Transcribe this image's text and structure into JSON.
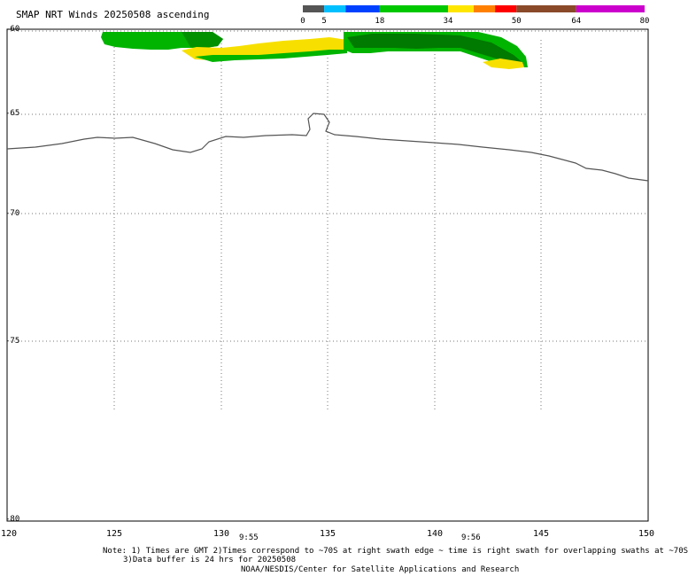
{
  "title": "SMAP NRT Winds 20250508 ascending",
  "colorbar": {
    "ticks": [
      "0",
      "5",
      "18",
      "34",
      "50",
      "64",
      "80"
    ],
    "segments": [
      {
        "from": 0,
        "to": 5,
        "color": "#555555"
      },
      {
        "from": 5,
        "to": 10,
        "color": "#00c0ff"
      },
      {
        "from": 10,
        "to": 18,
        "color": "#0040ff"
      },
      {
        "from": 18,
        "to": 34,
        "color": "#00c800"
      },
      {
        "from": 34,
        "to": 40,
        "color": "#ffe600"
      },
      {
        "from": 40,
        "to": 45,
        "color": "#ff8000"
      },
      {
        "from": 45,
        "to": 50,
        "color": "#ff0000"
      },
      {
        "from": 50,
        "to": 64,
        "color": "#8a4a2a"
      },
      {
        "from": 64,
        "to": 80,
        "color": "#cc00cc"
      }
    ]
  },
  "axes": {
    "lon_labels": [
      "120",
      "125",
      "130",
      "135",
      "140",
      "145",
      "150"
    ],
    "lat_labels": [
      "-60",
      "-65",
      "-70",
      "-75",
      "-80"
    ]
  },
  "times": [
    "9:55",
    "9:56"
  ],
  "notes": {
    "line1": "Note: 1) Times are GMT 2)Times correspond to ~70S at right swath edge ~ time is right swath for overlapping swaths at ~70S",
    "line2": "3)Data buffer is 24 hrs for 20250508",
    "credit": "NOAA/NESDIS/Center for Satellite Applications and Research"
  },
  "colors": {
    "wind_green": "#00b400",
    "wind_dark_green": "#007a00",
    "wind_yellow": "#f7e000",
    "coast": "#555555",
    "grid": "#777777"
  }
}
